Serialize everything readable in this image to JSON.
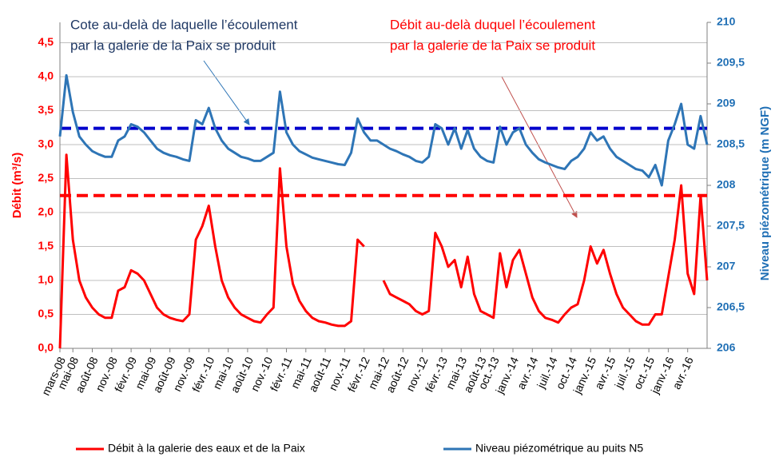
{
  "chart_data": {
    "type": "line",
    "y_title": "Débit (m³/s)",
    "y2_title": "Niveau piézométrique  (m NGF)",
    "categories": [
      "mars-08",
      null,
      "mai-08",
      null,
      null,
      "août-08",
      null,
      null,
      "nov.-08",
      null,
      null,
      "févr.-09",
      null,
      null,
      "mai-09",
      null,
      null,
      "août-09",
      null,
      null,
      "nov.-09",
      null,
      null,
      "févr.-10",
      null,
      null,
      "mai-10",
      null,
      null,
      "août-10",
      null,
      null,
      "nov.-10",
      null,
      null,
      "févr.-11",
      null,
      null,
      "mai-11",
      null,
      null,
      "août-11",
      null,
      null,
      "nov.-11",
      null,
      null,
      "févr.-12",
      null,
      null,
      "mai-12",
      null,
      null,
      "août-12",
      null,
      null,
      "nov.-12",
      null,
      null,
      "févr.-13",
      null,
      null,
      "mai-13",
      null,
      null,
      "août-13",
      null,
      "oct.-13",
      null,
      null,
      "janv.-14",
      null,
      null,
      "avr.-14",
      null,
      null,
      "juil.-14",
      null,
      null,
      "oct.-14",
      null,
      null,
      "janv.-15",
      null,
      null,
      "avr.-15",
      null,
      null,
      "juil.-15",
      null,
      null,
      "oct.-15",
      null,
      null,
      "janv.-16",
      null,
      null,
      "avr.-16",
      null,
      null,
      null
    ],
    "ylim": [
      0,
      4.8
    ],
    "yticks": [
      {
        "value": 0,
        "label": "0,0"
      },
      {
        "value": 0.5,
        "label": "0,5"
      },
      {
        "value": 1,
        "label": "1,0"
      },
      {
        "value": 1.5,
        "label": "1,5"
      },
      {
        "value": 2,
        "label": "2,0"
      },
      {
        "value": 2.5,
        "label": "2,5"
      },
      {
        "value": 3,
        "label": "3,0"
      },
      {
        "value": 3.5,
        "label": "3,5"
      },
      {
        "value": 4,
        "label": "4,0"
      },
      {
        "value": 4.5,
        "label": "4,5"
      }
    ],
    "y2lim": [
      206,
      210
    ],
    "y2ticks": [
      206,
      {
        "value": 206.5,
        "label": "206,5"
      },
      207,
      {
        "value": 207.5,
        "label": "207,5"
      },
      208,
      {
        "value": 208.5,
        "label": "208,5"
      },
      209,
      {
        "value": 209.5,
        "label": "209,5"
      },
      210
    ],
    "grid": true,
    "legend": "bottom",
    "series": [
      {
        "name": "Débit à la galerie des eaux et de la Paix",
        "color": "#ff0000",
        "axis": "y",
        "values": [
          0,
          2.85,
          1.6,
          1.0,
          0.75,
          0.6,
          0.5,
          0.45,
          0.45,
          0.85,
          0.9,
          1.15,
          1.1,
          1.0,
          0.8,
          0.6,
          0.5,
          0.45,
          0.42,
          0.4,
          0.5,
          1.6,
          1.8,
          2.1,
          1.5,
          1.0,
          0.75,
          0.6,
          0.5,
          0.45,
          0.4,
          0.38,
          0.5,
          0.6,
          2.65,
          1.5,
          0.95,
          0.7,
          0.55,
          0.45,
          0.4,
          0.38,
          0.35,
          0.33,
          0.33,
          0.4,
          1.6,
          1.5,
          null,
          null,
          1.0,
          0.8,
          0.75,
          0.7,
          0.65,
          0.55,
          0.5,
          0.55,
          1.7,
          1.5,
          1.2,
          1.3,
          0.9,
          1.35,
          0.8,
          0.55,
          0.5,
          0.45,
          1.4,
          0.9,
          1.3,
          1.45,
          1.1,
          0.75,
          0.55,
          0.45,
          0.42,
          0.38,
          0.5,
          0.6,
          0.65,
          1.0,
          1.5,
          1.25,
          1.45,
          1.1,
          0.8,
          0.6,
          0.5,
          0.4,
          0.35,
          0.35,
          0.5,
          0.5,
          1.05,
          1.6,
          2.4,
          1.1,
          0.8,
          2.25,
          1.0
        ]
      },
      {
        "name": "Niveau piézométrique au puits N5",
        "color": "#2e75b6",
        "axis": "y2",
        "values": [
          208.6,
          209.35,
          208.9,
          208.6,
          208.5,
          208.42,
          208.38,
          208.35,
          208.35,
          208.55,
          208.6,
          208.75,
          208.72,
          208.65,
          208.55,
          208.45,
          208.4,
          208.37,
          208.35,
          208.32,
          208.3,
          208.8,
          208.75,
          208.95,
          208.7,
          208.55,
          208.45,
          208.4,
          208.35,
          208.33,
          208.3,
          208.3,
          208.35,
          208.4,
          209.15,
          208.65,
          208.5,
          208.42,
          208.38,
          208.34,
          208.32,
          208.3,
          208.28,
          208.26,
          208.25,
          208.4,
          208.82,
          208.65,
          208.55,
          208.55,
          208.5,
          208.45,
          208.42,
          208.38,
          208.35,
          208.3,
          208.28,
          208.35,
          208.75,
          208.7,
          208.5,
          208.7,
          208.45,
          208.68,
          208.45,
          208.35,
          208.3,
          208.28,
          208.72,
          208.5,
          208.65,
          208.7,
          208.5,
          208.4,
          208.32,
          208.28,
          208.25,
          208.22,
          208.2,
          208.3,
          208.35,
          208.45,
          208.65,
          208.55,
          208.6,
          208.45,
          208.35,
          208.3,
          208.25,
          208.2,
          208.18,
          208.1,
          208.25,
          208.0,
          208.55,
          208.75,
          209.0,
          208.5,
          208.45,
          208.85,
          208.5
        ]
      }
    ],
    "reference_lines": [
      {
        "value": 208.7,
        "axis": "y2",
        "color": "#0000cc"
      },
      {
        "value": 2.25,
        "axis": "y",
        "color": "#ff0000"
      }
    ],
    "annotations": [
      {
        "lines": [
          "Cote au-delà de laquelle l’écoulement",
          "par la galerie de la Paix se produit"
        ],
        "color": "#1f3864"
      },
      {
        "lines": [
          "Débit au-delà duquel l’écoulement",
          "par la galerie de la Paix se produit"
        ],
        "color": "#ff0000"
      }
    ]
  }
}
